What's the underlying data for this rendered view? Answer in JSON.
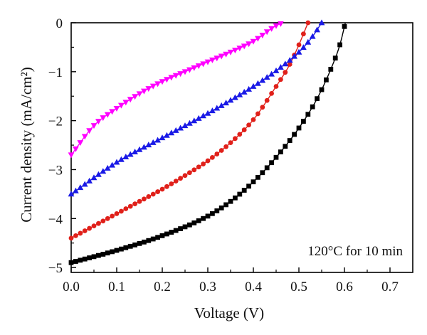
{
  "chart_data": {
    "type": "line",
    "xlabel": "Voltage (V)",
    "ylabel": "Current density (mA/cm²)",
    "xlim": [
      0,
      0.75
    ],
    "ylim": [
      -5.1,
      0
    ],
    "xticks": [
      "0.0",
      "0.1",
      "0.2",
      "0.3",
      "0.4",
      "0.5",
      "0.6",
      "0.7"
    ],
    "yticks": [
      "0",
      "−1",
      "−2",
      "−3",
      "−4",
      "−5"
    ],
    "annotation": "120°C for 10 min",
    "grid": false,
    "series": [
      {
        "color": "#000000",
        "marker": "square",
        "x": [
          0.0,
          0.1,
          0.2,
          0.3,
          0.35,
          0.4,
          0.45,
          0.5,
          0.54,
          0.57,
          0.59,
          0.602
        ],
        "y": [
          -4.9,
          -4.65,
          -4.35,
          -3.95,
          -3.65,
          -3.25,
          -2.75,
          -2.15,
          -1.55,
          -0.95,
          -0.45,
          0.0
        ]
      },
      {
        "color": "#e0201a",
        "marker": "circle",
        "x": [
          0.0,
          0.05,
          0.1,
          0.15,
          0.2,
          0.25,
          0.3,
          0.35,
          0.4,
          0.45,
          0.48,
          0.5,
          0.52
        ],
        "y": [
          -4.4,
          -4.15,
          -3.9,
          -3.65,
          -3.4,
          -3.12,
          -2.82,
          -2.45,
          -1.98,
          -1.3,
          -0.85,
          -0.45,
          0.0
        ]
      },
      {
        "color": "#1a1ae6",
        "marker": "triangle-up",
        "x": [
          0.0,
          0.1,
          0.2,
          0.3,
          0.4,
          0.45,
          0.5,
          0.53,
          0.55
        ],
        "y": [
          -3.5,
          -2.85,
          -2.35,
          -1.85,
          -1.3,
          -0.98,
          -0.6,
          -0.28,
          0.0
        ]
      },
      {
        "color": "#ff00ff",
        "marker": "triangle-down",
        "x": [
          0.0,
          0.05,
          0.1,
          0.15,
          0.2,
          0.25,
          0.3,
          0.35,
          0.4,
          0.45,
          0.465
        ],
        "y": [
          -2.7,
          -2.1,
          -1.75,
          -1.45,
          -1.2,
          -1.0,
          -0.8,
          -0.6,
          -0.38,
          -0.06,
          0.0
        ]
      }
    ]
  }
}
